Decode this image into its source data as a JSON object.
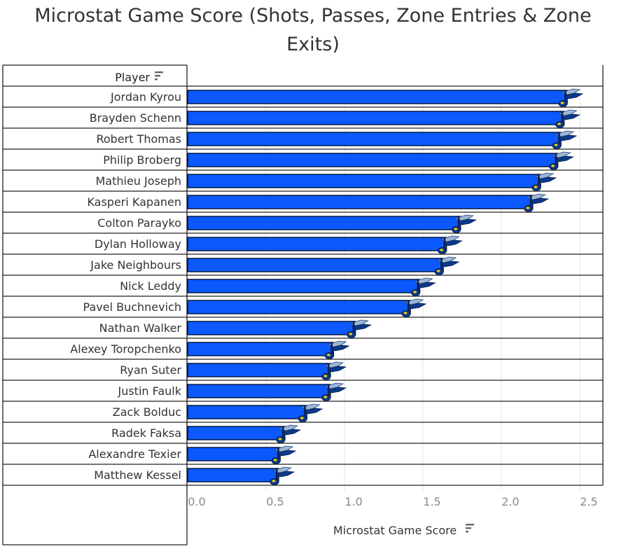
{
  "title": "Microstat Game Score (Shots, Passes, Zone Entries & Zone Exits)",
  "title_lines": [
    "Microstat Game Score (Shots, Passes, Zone Entries & Zone",
    "Exits)"
  ],
  "colors": {
    "bar": "#0b59ff",
    "bar_edge": "#001133",
    "grid": "#e6e6e6",
    "logo": "#0a3a8c"
  },
  "icons": {
    "sort": "sort-icon",
    "marker": "blues-note-logo-icon"
  },
  "chart_data": {
    "type": "bar",
    "orientation": "horizontal",
    "title": "Microstat Game Score (Shots, Passes, Zone Entries & Zone Exits)",
    "row_header": "Player",
    "xlabel": "Microstat Game Score",
    "xlim": [
      0,
      2.5
    ],
    "xticks": [
      "0.0",
      "0.5",
      "1.0",
      "1.5",
      "2.0",
      "2.5"
    ],
    "grid": true,
    "categories": [
      "Jordan Kyrou",
      "Brayden Schenn",
      "Robert Thomas",
      "Philip Broberg",
      "Mathieu Joseph",
      "Kasperi Kapanen",
      "Colton Parayko",
      "Dylan Holloway",
      "Jake Neighbours",
      "Nick Leddy",
      "Pavel Buchnevich",
      "Nathan Walker",
      "Alexey Toropchenko",
      "Ryan Suter",
      "Justin Faulk",
      "Zack Bolduc",
      "Radek Faksa",
      "Alexandre Texier",
      "Matthew Kessel"
    ],
    "values": [
      2.42,
      2.4,
      2.38,
      2.36,
      2.25,
      2.2,
      1.74,
      1.65,
      1.63,
      1.48,
      1.42,
      1.07,
      0.93,
      0.91,
      0.91,
      0.76,
      0.62,
      0.59,
      0.58
    ]
  }
}
